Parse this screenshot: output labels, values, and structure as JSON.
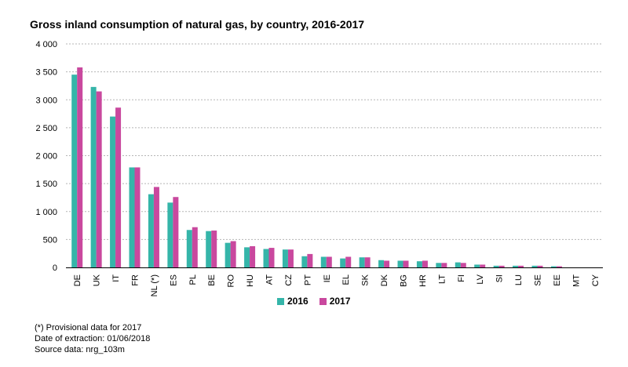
{
  "chart_data": {
    "type": "bar",
    "title": "Gross inland consumption of natural gas, by country, 2016-2017",
    "xlabel": "",
    "ylabel": "",
    "ylim": [
      0,
      4000
    ],
    "yticks": [
      {
        "value": 0,
        "label": "0"
      },
      {
        "value": 500,
        "label": "500"
      },
      {
        "value": 1000,
        "label": "1 000"
      },
      {
        "value": 1500,
        "label": "1 500"
      },
      {
        "value": 2000,
        "label": "2 000"
      },
      {
        "value": 2500,
        "label": "2 500"
      },
      {
        "value": 3000,
        "label": "3 000"
      },
      {
        "value": 3500,
        "label": "3 500"
      },
      {
        "value": 4000,
        "label": "4 000"
      }
    ],
    "grid": true,
    "legend_position": "bottom",
    "categories": [
      "DE",
      "UK",
      "IT",
      "FR",
      "NL (*)",
      "ES",
      "PL",
      "BE",
      "RO",
      "HU",
      "AT",
      "CZ",
      "PT",
      "IE",
      "EL",
      "SK",
      "DK",
      "BG",
      "HR",
      "LT",
      "FI",
      "LV",
      "SI",
      "LU",
      "SE",
      "EE",
      "MT",
      "CY"
    ],
    "series": [
      {
        "name": "2016",
        "color": "#35b5a9",
        "values": [
          3450,
          3230,
          2700,
          1790,
          1310,
          1160,
          670,
          650,
          440,
          360,
          330,
          320,
          200,
          190,
          160,
          180,
          130,
          120,
          110,
          80,
          90,
          50,
          30,
          30,
          30,
          20,
          0,
          0
        ]
      },
      {
        "name": "2017",
        "color": "#c9489e",
        "values": [
          3580,
          3150,
          2860,
          1790,
          1440,
          1260,
          720,
          660,
          470,
          380,
          350,
          320,
          240,
          190,
          190,
          180,
          120,
          120,
          120,
          80,
          80,
          50,
          30,
          30,
          30,
          20,
          0,
          0
        ]
      }
    ]
  },
  "notes": {
    "line1": "(*) Provisional data for 2017",
    "line2": "Date of extraction: 01/06/2018",
    "line3": "Source data: nrg_103m"
  }
}
